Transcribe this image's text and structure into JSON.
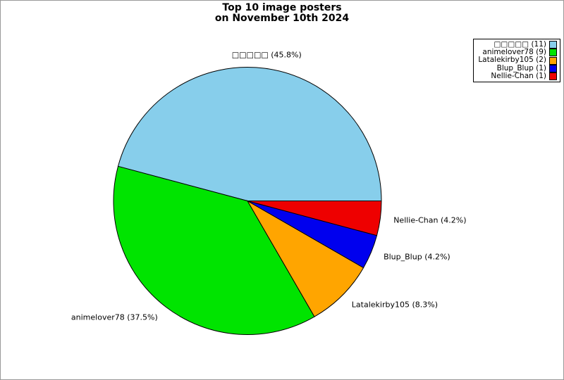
{
  "title": {
    "line1": "Top 10 image posters",
    "line2": "on November 10th 2024"
  },
  "chart_data": {
    "type": "pie",
    "title": "Top 10 image posters on November 10th 2024",
    "categories": [
      "□□□□□",
      "animelover78",
      "Latalekirby105",
      "Blup_Blup",
      "Nellie-Chan"
    ],
    "values": [
      11,
      9,
      2,
      1,
      1
    ],
    "percent_labels": [
      "45.8%",
      "37.5%",
      "8.3%",
      "4.2%",
      "4.2%"
    ],
    "slice_labels": [
      "□□□□□ (45.8%)",
      "animelover78 (37.5%)",
      "Latalekirby105 (8.3%)",
      "Blup_Blup (4.2%)",
      "Nellie-Chan (4.2%)"
    ],
    "legend_labels": [
      "□□□□□ (11)",
      "animelover78 (9)",
      "Latalekirby105 (2)",
      "Blup_Blup (1)",
      "Nellie-Chan (1)"
    ],
    "colors": [
      "#87ceeb",
      "#00e400",
      "#ffa500",
      "#0000ee",
      "#ee0000"
    ],
    "edge_color": "#000000",
    "start_angle_deg": 0,
    "direction": "counterclockwise",
    "legend_position": "top-right"
  },
  "colors": {
    "background": "#ffffff",
    "figure_border": "#999999",
    "text": "#000000"
  }
}
